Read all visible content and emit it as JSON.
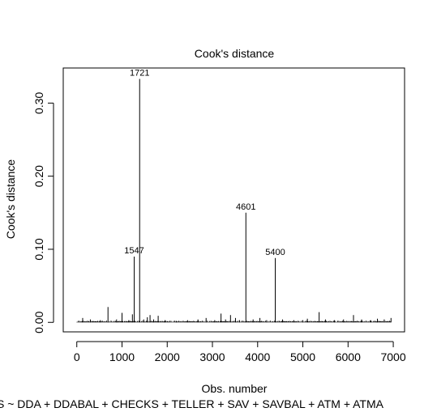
{
  "chart_data": {
    "type": "line",
    "title": "Cook's distance",
    "xlabel": "Obs. number",
    "ylabel": "Cook's distance",
    "caption": "S ~ DDA + DDABAL + CHECKS + TELLER + SAV + SAVBAL + ATM + ATMA",
    "xlim": [
      -300,
      7250
    ],
    "ylim": [
      -0.013,
      0.348
    ],
    "xticks": [
      0,
      1000,
      2000,
      3000,
      4000,
      5000,
      6000,
      7000
    ],
    "yticks": [
      0.0,
      0.1,
      0.2,
      0.3
    ],
    "ytick_labels": [
      "0.00",
      "0.10",
      "0.20",
      "0.30"
    ],
    "labeled_points": [
      {
        "label": "1547",
        "x": 1270,
        "y": 0.09
      },
      {
        "label": "1721",
        "x": 1390,
        "y": 0.333
      },
      {
        "label": "4601",
        "x": 3740,
        "y": 0.15
      },
      {
        "label": "5400",
        "x": 4390,
        "y": 0.088
      }
    ],
    "minor_spikes": [
      [
        130,
        0.006
      ],
      [
        300,
        0.004
      ],
      [
        520,
        0.003
      ],
      [
        690,
        0.021
      ],
      [
        880,
        0.004
      ],
      [
        1000,
        0.013
      ],
      [
        1150,
        0.003
      ],
      [
        1230,
        0.011
      ],
      [
        1480,
        0.004
      ],
      [
        1560,
        0.007
      ],
      [
        1620,
        0.01
      ],
      [
        1700,
        0.004
      ],
      [
        1800,
        0.009
      ],
      [
        1950,
        0.003
      ],
      [
        2200,
        0.002
      ],
      [
        2450,
        0.003
      ],
      [
        2680,
        0.004
      ],
      [
        2860,
        0.006
      ],
      [
        3050,
        0.003
      ],
      [
        3190,
        0.012
      ],
      [
        3290,
        0.004
      ],
      [
        3400,
        0.01
      ],
      [
        3510,
        0.006
      ],
      [
        3600,
        0.003
      ],
      [
        3900,
        0.004
      ],
      [
        4050,
        0.006
      ],
      [
        4200,
        0.003
      ],
      [
        4550,
        0.004
      ],
      [
        4800,
        0.003
      ],
      [
        5000,
        0.003
      ],
      [
        5100,
        0.005
      ],
      [
        5360,
        0.014
      ],
      [
        5500,
        0.004
      ],
      [
        5700,
        0.003
      ],
      [
        5900,
        0.004
      ],
      [
        6120,
        0.01
      ],
      [
        6300,
        0.004
      ],
      [
        6500,
        0.003
      ],
      [
        6650,
        0.005
      ],
      [
        6800,
        0.004
      ],
      [
        6950,
        0.006
      ]
    ]
  }
}
